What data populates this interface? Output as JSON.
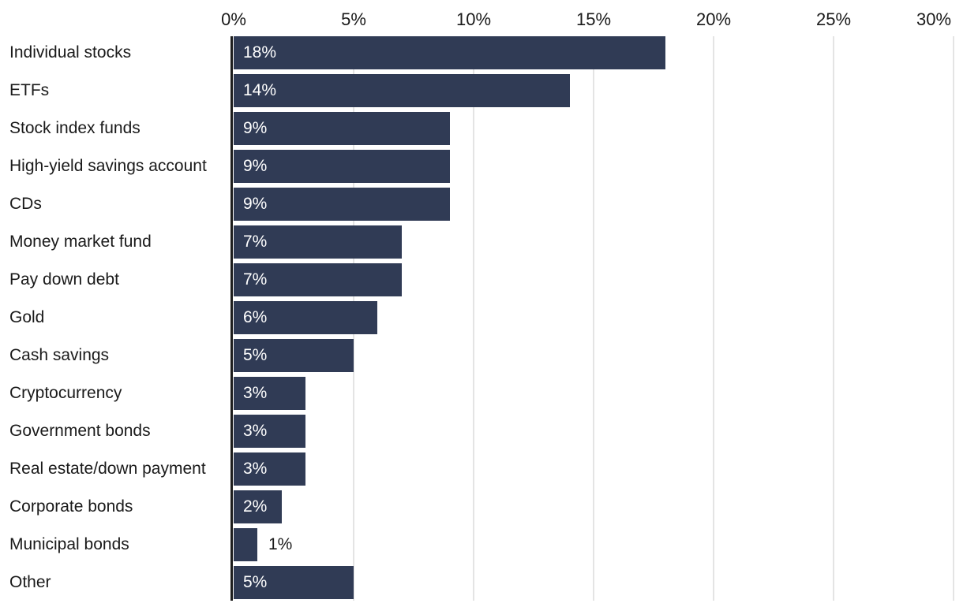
{
  "chart_data": {
    "type": "bar",
    "orientation": "horizontal",
    "title": "",
    "categories": [
      "Individual stocks",
      "ETFs",
      "Stock index funds",
      "High-yield savings account",
      "CDs",
      "Money market fund",
      "Pay down debt",
      "Gold",
      "Cash savings",
      "Cryptocurrency",
      "Government bonds",
      "Real estate/down payment",
      "Corporate bonds",
      "Municipal bonds",
      "Other"
    ],
    "values": [
      18,
      14,
      9,
      9,
      9,
      7,
      7,
      6,
      5,
      3,
      3,
      3,
      2,
      1,
      5
    ],
    "value_labels": [
      "18%",
      "14%",
      "9%",
      "9%",
      "9%",
      "7%",
      "7%",
      "6%",
      "5%",
      "3%",
      "3%",
      "3%",
      "2%",
      "1%",
      "5%"
    ],
    "x_axis": {
      "position": "top",
      "min": 0,
      "max": 30,
      "ticks": [
        0,
        5,
        10,
        15,
        20,
        25,
        30
      ],
      "tick_labels": [
        "0%",
        "5%",
        "10%",
        "15%",
        "20%",
        "25%",
        "30%"
      ]
    },
    "grid": true,
    "legend": false,
    "colors": {
      "bar": "#303b55",
      "bar_label_inside": "#ffffff",
      "bar_label_outside": "#1a1a1a",
      "axis_line": "#1d1d1d",
      "gridline": "#e4e4e4",
      "tick_label": "#1a1a1a",
      "category_label": "#1a1a1a",
      "background": "#ffffff"
    }
  }
}
